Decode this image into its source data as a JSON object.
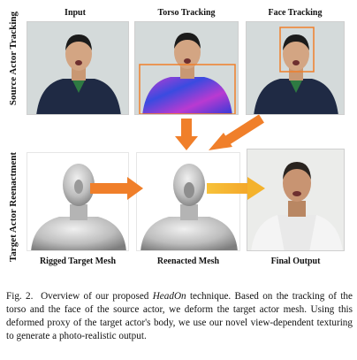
{
  "figure": {
    "section_labels": {
      "source": "Source Actor Tracking",
      "target": "Target Actor Reenactment"
    },
    "top_row": [
      "Input",
      "Torso Tracking",
      "Face Tracking"
    ],
    "bottom_row": [
      "Rigged Target Mesh",
      "Reenacted Mesh",
      "Final Output"
    ],
    "colors": {
      "arrow_orange": "#f07f2a",
      "arrow_yellow": "#f4b22c",
      "box_orange": "#f07f2a",
      "jacket_navy": "#1f2a44",
      "torso_tracking_magenta": "#b93ad1",
      "torso_tracking_blue": "#3a4be0",
      "mesh_gray": "#c9c9c9"
    }
  },
  "caption": {
    "label": "Fig. 2.",
    "pre": "Overview of our proposed ",
    "title": "HeadOn",
    "post": " technique. Based on the tracking of the torso and the face of the source actor, we deform the target actor mesh. Using this deformed proxy of the target actor's body, we use our novel view-dependent texturing to generate a photo-realistic output."
  }
}
